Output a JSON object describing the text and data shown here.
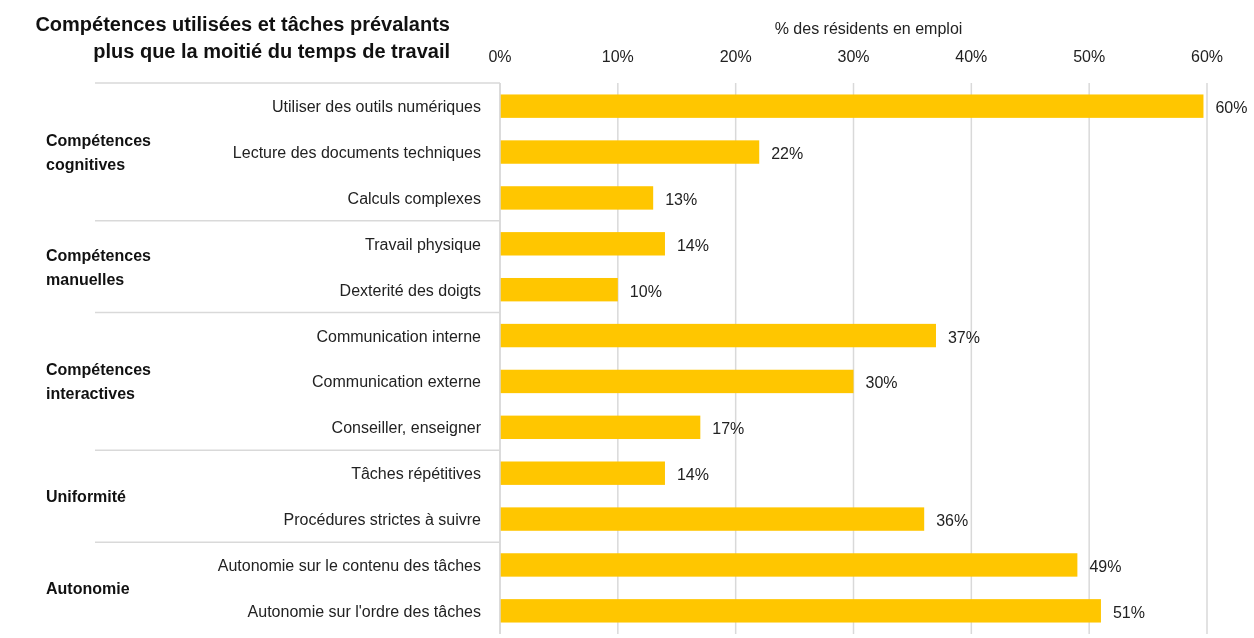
{
  "chart_data": {
    "type": "bar",
    "orientation": "horizontal",
    "title": "Compétences utilisées et tâches prévalants plus que la moitié du temps de travail",
    "xlabel": "% des résidents en emploi",
    "categories": [
      "Utiliser des outils numériques",
      "Lecture des documents techniques",
      "Calculs complexes",
      "Travail physique",
      "Dexterité des doigts",
      "Communication interne",
      "Communication externe ",
      "Conseiller, enseigner ",
      "Tâches répétitives",
      "Procédures strictes à suivre",
      "Autonomie sur le contenu des tâches",
      "Autonomie sur l'ordre des tâches"
    ],
    "values": [
      59.7,
      22,
      13,
      14,
      10,
      37,
      30,
      17,
      14,
      36,
      49,
      51
    ],
    "value_labels": [
      "60%",
      "22%",
      "13%",
      "14%",
      "10%",
      "37%",
      "30%",
      "17%",
      "14%",
      "36%",
      "49%",
      "51%"
    ],
    "color": "#ffc600",
    "xlim": [
      0,
      60
    ],
    "xticks": [
      {
        "value": 0,
        "label": "0%"
      },
      {
        "value": 10,
        "label": "10%"
      },
      {
        "value": 20,
        "label": "20%"
      },
      {
        "value": 30,
        "label": "30%"
      },
      {
        "value": 40,
        "label": "40%"
      },
      {
        "value": 50,
        "label": "50%"
      },
      {
        "value": 60,
        "label": "60%"
      }
    ],
    "grid": "x",
    "annotations": [
      "Compétences cognitives",
      "Compétences manuelles",
      "Compétences interactives",
      "Uniformité",
      "Autonomie"
    ]
  }
}
